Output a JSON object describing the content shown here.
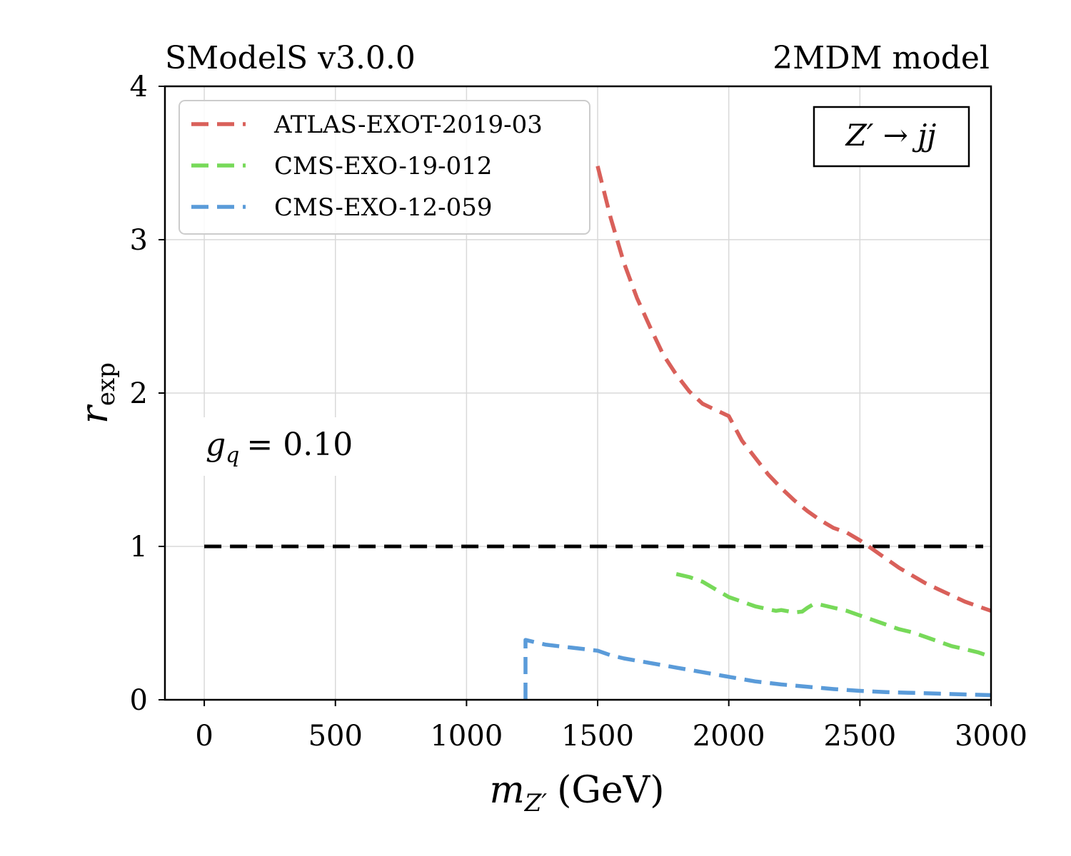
{
  "chart_data": {
    "type": "line",
    "title_left": "SModelS v3.0.0",
    "title_right": "2MDM model",
    "xlabel_var": "m",
    "xlabel_sub": "Z′",
    "xlabel_unit": "(GeV)",
    "ylabel_var": "r",
    "ylabel_sub": "exp",
    "xlim": [
      -150,
      3000
    ],
    "ylim": [
      0,
      4
    ],
    "xticks": [
      0,
      500,
      1000,
      1500,
      2000,
      2500,
      3000
    ],
    "yticks": [
      0,
      1,
      2,
      3,
      4
    ],
    "grid": true,
    "legend_position": "upper-left",
    "process_box": "Z′ → jj",
    "coupling_label": "g_q = 0.10",
    "coupling_var": "g",
    "coupling_sub": "q",
    "coupling_value": "= 0.10",
    "reference_line": {
      "y": 1,
      "x": [
        0,
        2970
      ],
      "color": "#000000"
    },
    "series": [
      {
        "name": "ATLAS-EXOT-2019-03",
        "color": "#d9605a",
        "x": [
          1500,
          1550,
          1600,
          1650,
          1700,
          1750,
          1800,
          1850,
          1900,
          1950,
          2000,
          2050,
          2100,
          2150,
          2200,
          2250,
          2300,
          2350,
          2400,
          2450,
          2500,
          2550,
          2600,
          2650,
          2700,
          2750,
          2800,
          2850,
          2900,
          2950,
          3000
        ],
        "y": [
          3.48,
          3.14,
          2.85,
          2.62,
          2.43,
          2.25,
          2.12,
          2.01,
          1.93,
          1.89,
          1.85,
          1.69,
          1.58,
          1.47,
          1.38,
          1.3,
          1.23,
          1.17,
          1.12,
          1.09,
          1.04,
          0.98,
          0.92,
          0.86,
          0.81,
          0.76,
          0.72,
          0.68,
          0.64,
          0.61,
          0.58
        ]
      },
      {
        "name": "CMS-EXO-19-012",
        "color": "#77d959",
        "x": [
          1800,
          1850,
          1900,
          1950,
          2000,
          2050,
          2100,
          2150,
          2180,
          2200,
          2250,
          2280,
          2300,
          2320,
          2350,
          2400,
          2450,
          2500,
          2550,
          2600,
          2650,
          2700,
          2750,
          2800,
          2850,
          2900,
          2950,
          3000
        ],
        "y": [
          0.82,
          0.8,
          0.77,
          0.72,
          0.67,
          0.64,
          0.61,
          0.59,
          0.58,
          0.585,
          0.57,
          0.575,
          0.6,
          0.62,
          0.62,
          0.6,
          0.58,
          0.55,
          0.52,
          0.49,
          0.46,
          0.44,
          0.41,
          0.38,
          0.35,
          0.33,
          0.31,
          0.28
        ]
      },
      {
        "name": "CMS-EXO-12-059",
        "color": "#5a9bd9",
        "x": [
          1225,
          1225,
          1250,
          1300,
          1350,
          1400,
          1450,
          1500,
          1550,
          1600,
          1700,
          1800,
          1900,
          2000,
          2100,
          2200,
          2300,
          2400,
          2500,
          2600,
          2700,
          2800,
          2900,
          3000
        ],
        "y": [
          0.0,
          0.39,
          0.38,
          0.36,
          0.35,
          0.34,
          0.33,
          0.32,
          0.29,
          0.27,
          0.24,
          0.21,
          0.18,
          0.15,
          0.12,
          0.1,
          0.085,
          0.07,
          0.058,
          0.05,
          0.045,
          0.04,
          0.035,
          0.03
        ]
      }
    ]
  }
}
